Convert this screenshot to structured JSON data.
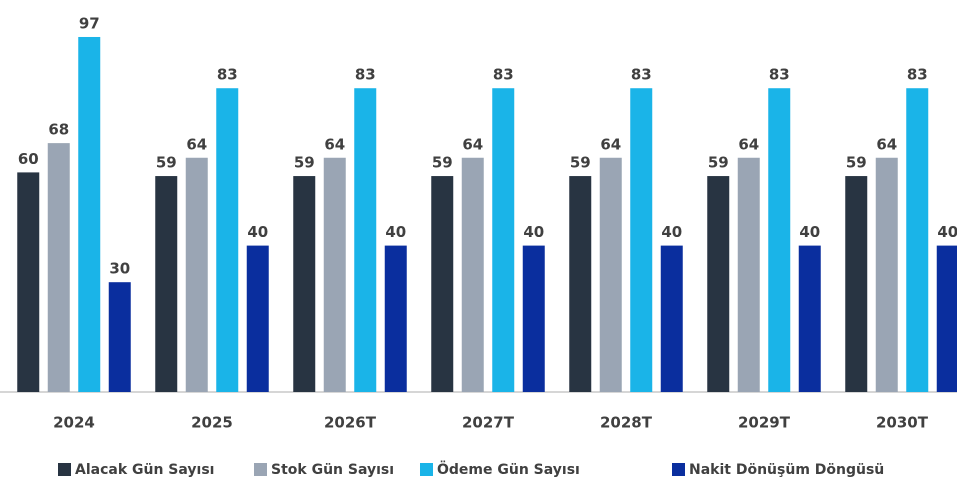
{
  "chart_data": {
    "type": "bar",
    "categories": [
      "2024",
      "2025",
      "2026T",
      "2027T",
      "2028T",
      "2029T",
      "2030T"
    ],
    "series": [
      {
        "name": "Alacak Gün Sayısı",
        "color": "#283442",
        "values": [
          60,
          59,
          59,
          59,
          59,
          59,
          59
        ]
      },
      {
        "name": "Stok Gün Sayısı",
        "color": "#9aa5b4",
        "values": [
          68,
          64,
          64,
          64,
          64,
          64,
          64
        ]
      },
      {
        "name": "Ödeme Gün Sayısı",
        "color": "#1ab4e8",
        "values": [
          97,
          83,
          83,
          83,
          83,
          83,
          83
        ]
      },
      {
        "name": "Nakit Dönüşüm Döngüsü",
        "color": "#0a2e9e",
        "values": [
          30,
          40,
          40,
          40,
          40,
          40,
          40
        ]
      }
    ],
    "ylim": [
      0,
      100
    ],
    "legend": "bottom"
  }
}
